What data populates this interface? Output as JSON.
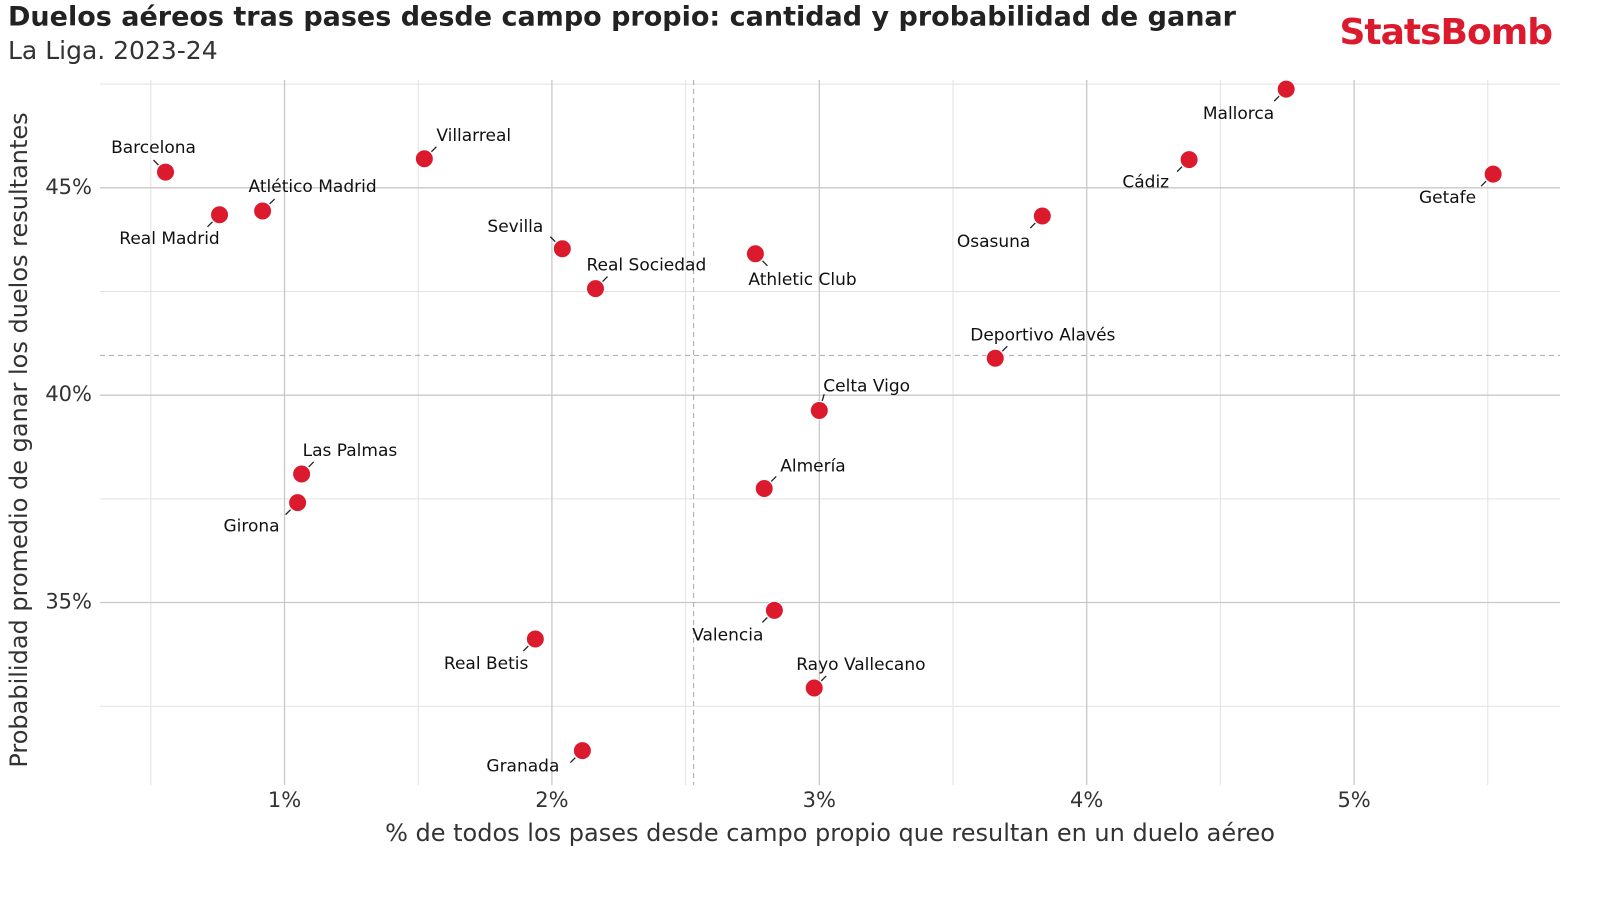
{
  "chart_data": {
    "type": "scatter",
    "title": "Duelos aéreos tras pases desde campo propio: cantidad y probabilidad de ganar",
    "subtitle": "La Liga. 2023-24",
    "brand": "StatsBomb",
    "x_label": "% de todos los pases desde campo propio que resultan en un duelo aéreo",
    "y_label": "Probabilidad promedio de ganar los duelos resultantes",
    "color": "#dc1a2e",
    "xlim": [
      0.31,
      5.77
    ],
    "ylim": [
      30.6,
      47.6
    ],
    "xticks": [
      {
        "value": 1,
        "label": "1%"
      },
      {
        "value": 2,
        "label": "2%"
      },
      {
        "value": 3,
        "label": "3%"
      },
      {
        "value": 4,
        "label": "4%"
      },
      {
        "value": 5,
        "label": "5%"
      }
    ],
    "yticks": [
      {
        "value": 35,
        "label": "35%"
      },
      {
        "value": 40,
        "label": "40%"
      },
      {
        "value": 45,
        "label": "45%"
      }
    ],
    "minor_xticks": [
      0.5,
      1.5,
      2.5,
      3.5,
      4.5,
      5.5
    ],
    "minor_yticks": [
      32.5,
      37.5,
      42.5,
      47.5
    ],
    "grid": true,
    "reference_lines": {
      "x": 2.53,
      "y": 40.96
    },
    "labels": [
      "Barcelona",
      "Real Madrid",
      "Atlético Madrid",
      "Villarreal",
      "Sevilla",
      "Real Sociedad",
      "Athletic Club",
      "Las Palmas",
      "Girona",
      "Real Betis",
      "Granada",
      "Celta Vigo",
      "Almería",
      "Valencia",
      "Rayo Vallecano",
      "Deportivo Alavés",
      "Osasuna",
      "Cádiz",
      "Mallorca",
      "Getafe"
    ],
    "x": [
      0.555,
      0.757,
      0.918,
      1.523,
      2.039,
      2.163,
      2.761,
      1.064,
      1.049,
      1.938,
      2.114,
      3.0,
      2.794,
      2.832,
      2.981,
      3.658,
      3.834,
      4.383,
      4.746,
      5.52
    ],
    "y": [
      45.38,
      44.35,
      44.44,
      45.7,
      43.53,
      42.57,
      43.41,
      38.1,
      37.41,
      34.12,
      31.43,
      39.63,
      37.75,
      34.81,
      32.94,
      40.89,
      44.32,
      45.68,
      47.38,
      45.33
    ]
  }
}
